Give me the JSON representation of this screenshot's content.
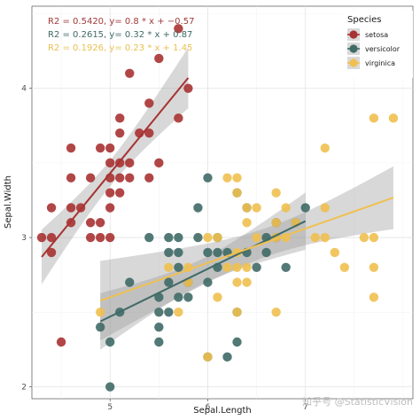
{
  "chart_data": {
    "type": "scatter",
    "xlabel": "Sepal.Length",
    "ylabel": "Sepal.Width",
    "xlim": [
      4.2,
      8.1
    ],
    "ylim": [
      1.92,
      4.55
    ],
    "xticks": [
      5,
      6,
      7
    ],
    "yticks": [
      2,
      3,
      4
    ],
    "grid": true,
    "legend": {
      "title": "Species",
      "position": "top-right"
    },
    "annotations": [
      {
        "text": "R2 = 0.5420, y= 0.8 * x + −0.57",
        "color": "#a03a3a"
      },
      {
        "text": "R2 = 0.2615, y= 0.32 * x + 0.87",
        "color": "#3f6a66"
      },
      {
        "text": "R2 = 0.1926, y= 0.23 * x + 1.45",
        "color": "#e8c050"
      }
    ],
    "series": [
      {
        "name": "setosa",
        "color": "#a83232",
        "fit": {
          "slope": 0.8,
          "intercept": -0.57,
          "x_range": [
            4.3,
            5.8
          ]
        },
        "points": [
          [
            4.3,
            3.0
          ],
          [
            4.4,
            2.9
          ],
          [
            4.4,
            3.0
          ],
          [
            4.4,
            3.2
          ],
          [
            4.5,
            2.3
          ],
          [
            4.6,
            3.1
          ],
          [
            4.6,
            3.2
          ],
          [
            4.6,
            3.4
          ],
          [
            4.6,
            3.6
          ],
          [
            4.7,
            3.2
          ],
          [
            4.8,
            3.0
          ],
          [
            4.8,
            3.1
          ],
          [
            4.8,
            3.4
          ],
          [
            4.9,
            3.0
          ],
          [
            4.9,
            3.1
          ],
          [
            4.9,
            3.6
          ],
          [
            5.0,
            3.0
          ],
          [
            5.0,
            3.2
          ],
          [
            5.0,
            3.3
          ],
          [
            5.0,
            3.4
          ],
          [
            5.0,
            3.5
          ],
          [
            5.0,
            3.6
          ],
          [
            5.1,
            3.3
          ],
          [
            5.1,
            3.4
          ],
          [
            5.1,
            3.5
          ],
          [
            5.1,
            3.7
          ],
          [
            5.1,
            3.8
          ],
          [
            5.2,
            3.4
          ],
          [
            5.2,
            3.5
          ],
          [
            5.2,
            4.1
          ],
          [
            5.3,
            3.7
          ],
          [
            5.4,
            3.4
          ],
          [
            5.4,
            3.7
          ],
          [
            5.4,
            3.9
          ],
          [
            5.5,
            3.5
          ],
          [
            5.5,
            4.2
          ],
          [
            5.7,
            3.8
          ],
          [
            5.7,
            4.4
          ],
          [
            5.8,
            4.0
          ]
        ]
      },
      {
        "name": "versicolor",
        "color": "#3f6a66",
        "fit": {
          "slope": 0.32,
          "intercept": 0.87,
          "x_range": [
            4.9,
            7.0
          ]
        },
        "points": [
          [
            4.9,
            2.4
          ],
          [
            5.0,
            2.0
          ],
          [
            5.0,
            2.3
          ],
          [
            5.1,
            2.5
          ],
          [
            5.2,
            2.7
          ],
          [
            5.4,
            3.0
          ],
          [
            5.5,
            2.3
          ],
          [
            5.5,
            2.4
          ],
          [
            5.5,
            2.5
          ],
          [
            5.5,
            2.6
          ],
          [
            5.6,
            2.5
          ],
          [
            5.6,
            2.7
          ],
          [
            5.6,
            2.9
          ],
          [
            5.6,
            3.0
          ],
          [
            5.7,
            2.6
          ],
          [
            5.7,
            2.8
          ],
          [
            5.7,
            2.9
          ],
          [
            5.7,
            3.0
          ],
          [
            5.8,
            2.6
          ],
          [
            5.8,
            2.7
          ],
          [
            5.9,
            3.0
          ],
          [
            5.9,
            3.2
          ],
          [
            6.0,
            2.2
          ],
          [
            6.0,
            2.7
          ],
          [
            6.0,
            2.9
          ],
          [
            6.0,
            3.4
          ],
          [
            6.1,
            2.8
          ],
          [
            6.1,
            2.9
          ],
          [
            6.1,
            3.0
          ],
          [
            6.2,
            2.2
          ],
          [
            6.2,
            2.9
          ],
          [
            6.3,
            2.3
          ],
          [
            6.3,
            2.5
          ],
          [
            6.3,
            3.3
          ],
          [
            6.4,
            2.9
          ],
          [
            6.4,
            3.2
          ],
          [
            6.5,
            2.8
          ],
          [
            6.6,
            2.9
          ],
          [
            6.6,
            3.0
          ],
          [
            6.7,
            3.0
          ],
          [
            6.7,
            3.1
          ],
          [
            6.8,
            2.8
          ],
          [
            6.9,
            3.1
          ],
          [
            7.0,
            3.2
          ]
        ]
      },
      {
        "name": "virginica",
        "color": "#f0c050",
        "fit": {
          "slope": 0.23,
          "intercept": 1.45,
          "x_range": [
            4.9,
            7.9
          ]
        },
        "points": [
          [
            4.9,
            2.5
          ],
          [
            5.6,
            2.8
          ],
          [
            5.7,
            2.5
          ],
          [
            5.8,
            2.7
          ],
          [
            5.8,
            2.8
          ],
          [
            6.0,
            2.2
          ],
          [
            6.0,
            3.0
          ],
          [
            6.1,
            2.6
          ],
          [
            6.1,
            3.0
          ],
          [
            6.2,
            2.8
          ],
          [
            6.2,
            3.4
          ],
          [
            6.3,
            2.5
          ],
          [
            6.3,
            2.7
          ],
          [
            6.3,
            2.8
          ],
          [
            6.3,
            2.9
          ],
          [
            6.3,
            3.3
          ],
          [
            6.3,
            3.4
          ],
          [
            6.4,
            2.7
          ],
          [
            6.4,
            2.8
          ],
          [
            6.4,
            3.1
          ],
          [
            6.4,
            3.2
          ],
          [
            6.5,
            3.0
          ],
          [
            6.5,
            3.2
          ],
          [
            6.7,
            2.5
          ],
          [
            6.7,
            3.0
          ],
          [
            6.7,
            3.1
          ],
          [
            6.7,
            3.3
          ],
          [
            6.8,
            3.0
          ],
          [
            6.8,
            3.2
          ],
          [
            6.9,
            3.1
          ],
          [
            7.1,
            3.0
          ],
          [
            7.2,
            3.0
          ],
          [
            7.2,
            3.2
          ],
          [
            7.2,
            3.6
          ],
          [
            7.3,
            2.9
          ],
          [
            7.4,
            2.8
          ],
          [
            7.6,
            3.0
          ],
          [
            7.7,
            2.6
          ],
          [
            7.7,
            2.8
          ],
          [
            7.7,
            3.0
          ],
          [
            7.7,
            3.8
          ],
          [
            7.9,
            3.8
          ]
        ]
      }
    ]
  },
  "watermark": "知乎号 @StatisticVision"
}
